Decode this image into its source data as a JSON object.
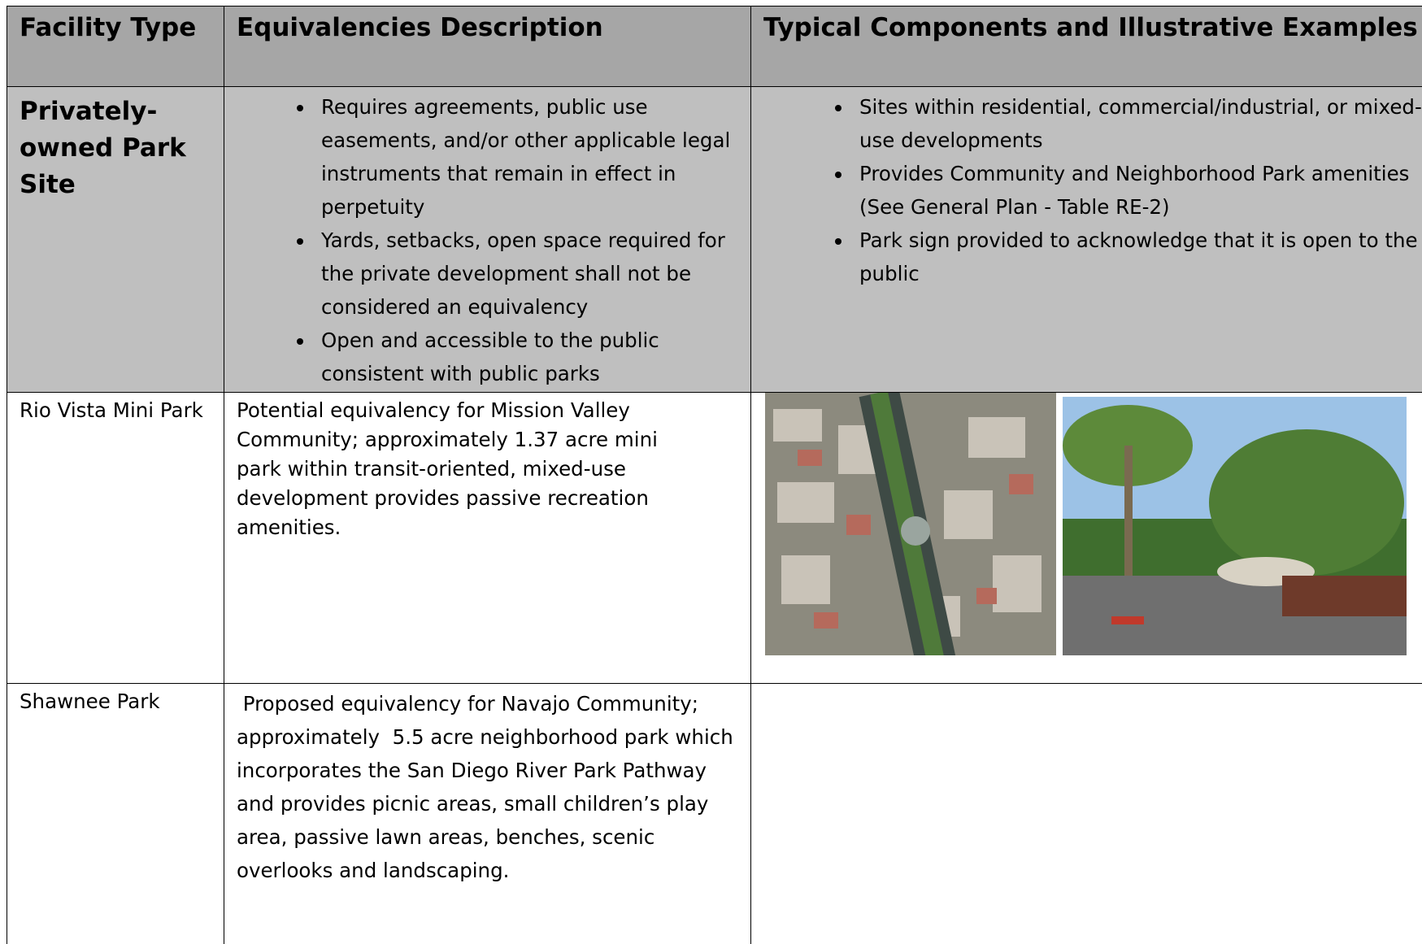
{
  "table": {
    "header": [
      "Facility Type",
      "Equivalencies Description",
      "Typical Components and Illustrative Examples"
    ],
    "rows": [
      {
        "type": "Privately-owned Park Site",
        "description": [
          "Requires agreements, public use easements, and/or other applicable legal instruments that remain in effect in perpetuity",
          "Yards, setbacks, open space required for the private development shall not be considered an equivalency",
          "Open and accessible to the public consistent with public parks"
        ],
        "components": [
          "Sites within residential, commercial/industrial, or mixed-use developments",
          "Provides Community and Neighborhood Park amenities (See General Plan - Table RE-2)",
          "Park sign provided to acknowledge that it is open to the public"
        ]
      },
      {
        "type": "Rio Vista Mini Park",
        "description": "Potential equivalency for Mission Valley Community; approximately 1.37 acre mini park within transit-oriented, mixed-use development provides passive recreation amenities."
      },
      {
        "type": "Shawnee Park",
        "description": " Proposed equivalency for Navajo Community; approximately  5.5 acre neighborhood park which incorporates the San Diego River Park Pathway and provides picnic areas, small children’s play area, passive lawn areas, benches, scenic overlooks and landscaping."
      }
    ]
  }
}
